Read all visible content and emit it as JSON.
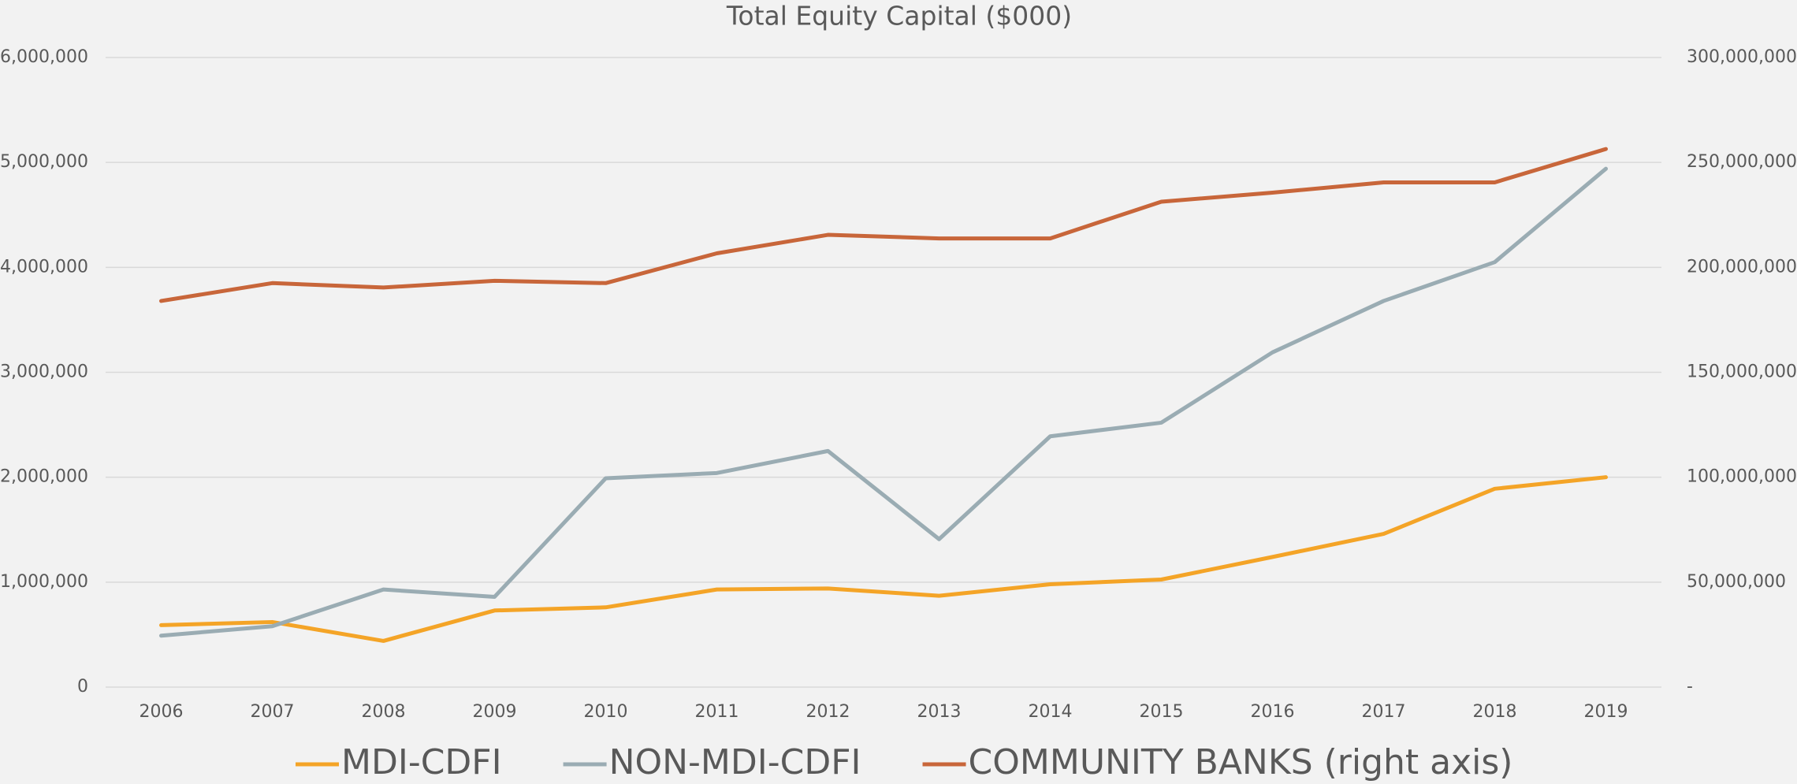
{
  "chart_data": {
    "type": "line",
    "title": "Total Equity Capital ($000)",
    "categories": [
      "2006",
      "2007",
      "2008",
      "2009",
      "2010",
      "2011",
      "2012",
      "2013",
      "2014",
      "2015",
      "2016",
      "2017",
      "2018",
      "2019"
    ],
    "series": [
      {
        "name": "MDI-CDFI",
        "color": "#f4a427",
        "values": [
          590000,
          620000,
          440000,
          730000,
          760000,
          930000,
          940000,
          870000,
          980000,
          1025000,
          1240000,
          1460000,
          1890000,
          2000000
        ]
      },
      {
        "name": "NON-MDI-CDFI",
        "color": "#9aacb3",
        "values": [
          490000,
          580000,
          930000,
          860000,
          1990000,
          2040000,
          2250000,
          1410000,
          2390000,
          2520000,
          3190000,
          3680000,
          4050000,
          4940000
        ]
      },
      {
        "name": "COMMUNITY BANKS (right axis)",
        "color": "#c8663a",
        "axis": "y2",
        "values": [
          184000000,
          192500000,
          190400000,
          193600000,
          192500000,
          206700000,
          215500000,
          213800000,
          213800000,
          231300000,
          235600000,
          240500000,
          240500000,
          256400000
        ]
      }
    ],
    "ylim": [
      0,
      6000000
    ],
    "yticks": [
      0,
      {
        "value": 1000000,
        "label": "1,000,000"
      },
      {
        "value": 2000000,
        "label": "2,000,000"
      },
      {
        "value": 3000000,
        "label": "3,000,000"
      },
      {
        "value": 4000000,
        "label": "4,000,000"
      },
      {
        "value": 5000000,
        "label": "5,000,000"
      },
      {
        "value": 6000000,
        "label": "6,000,000"
      }
    ],
    "y2lim": [
      0,
      300000000
    ],
    "y2ticks": [
      {
        "value": 0,
        "label": "-"
      },
      {
        "value": 50000000,
        "label": "50,000,000"
      },
      {
        "value": 100000000,
        "label": "100,000,000"
      },
      {
        "value": 150000000,
        "label": "150,000,000"
      },
      {
        "value": 200000000,
        "label": "200,000,000"
      },
      {
        "value": 250000000,
        "label": "250,000,000"
      },
      {
        "value": 300000000,
        "label": "300,000,000"
      }
    ],
    "grid": true,
    "legend": "bottom"
  }
}
